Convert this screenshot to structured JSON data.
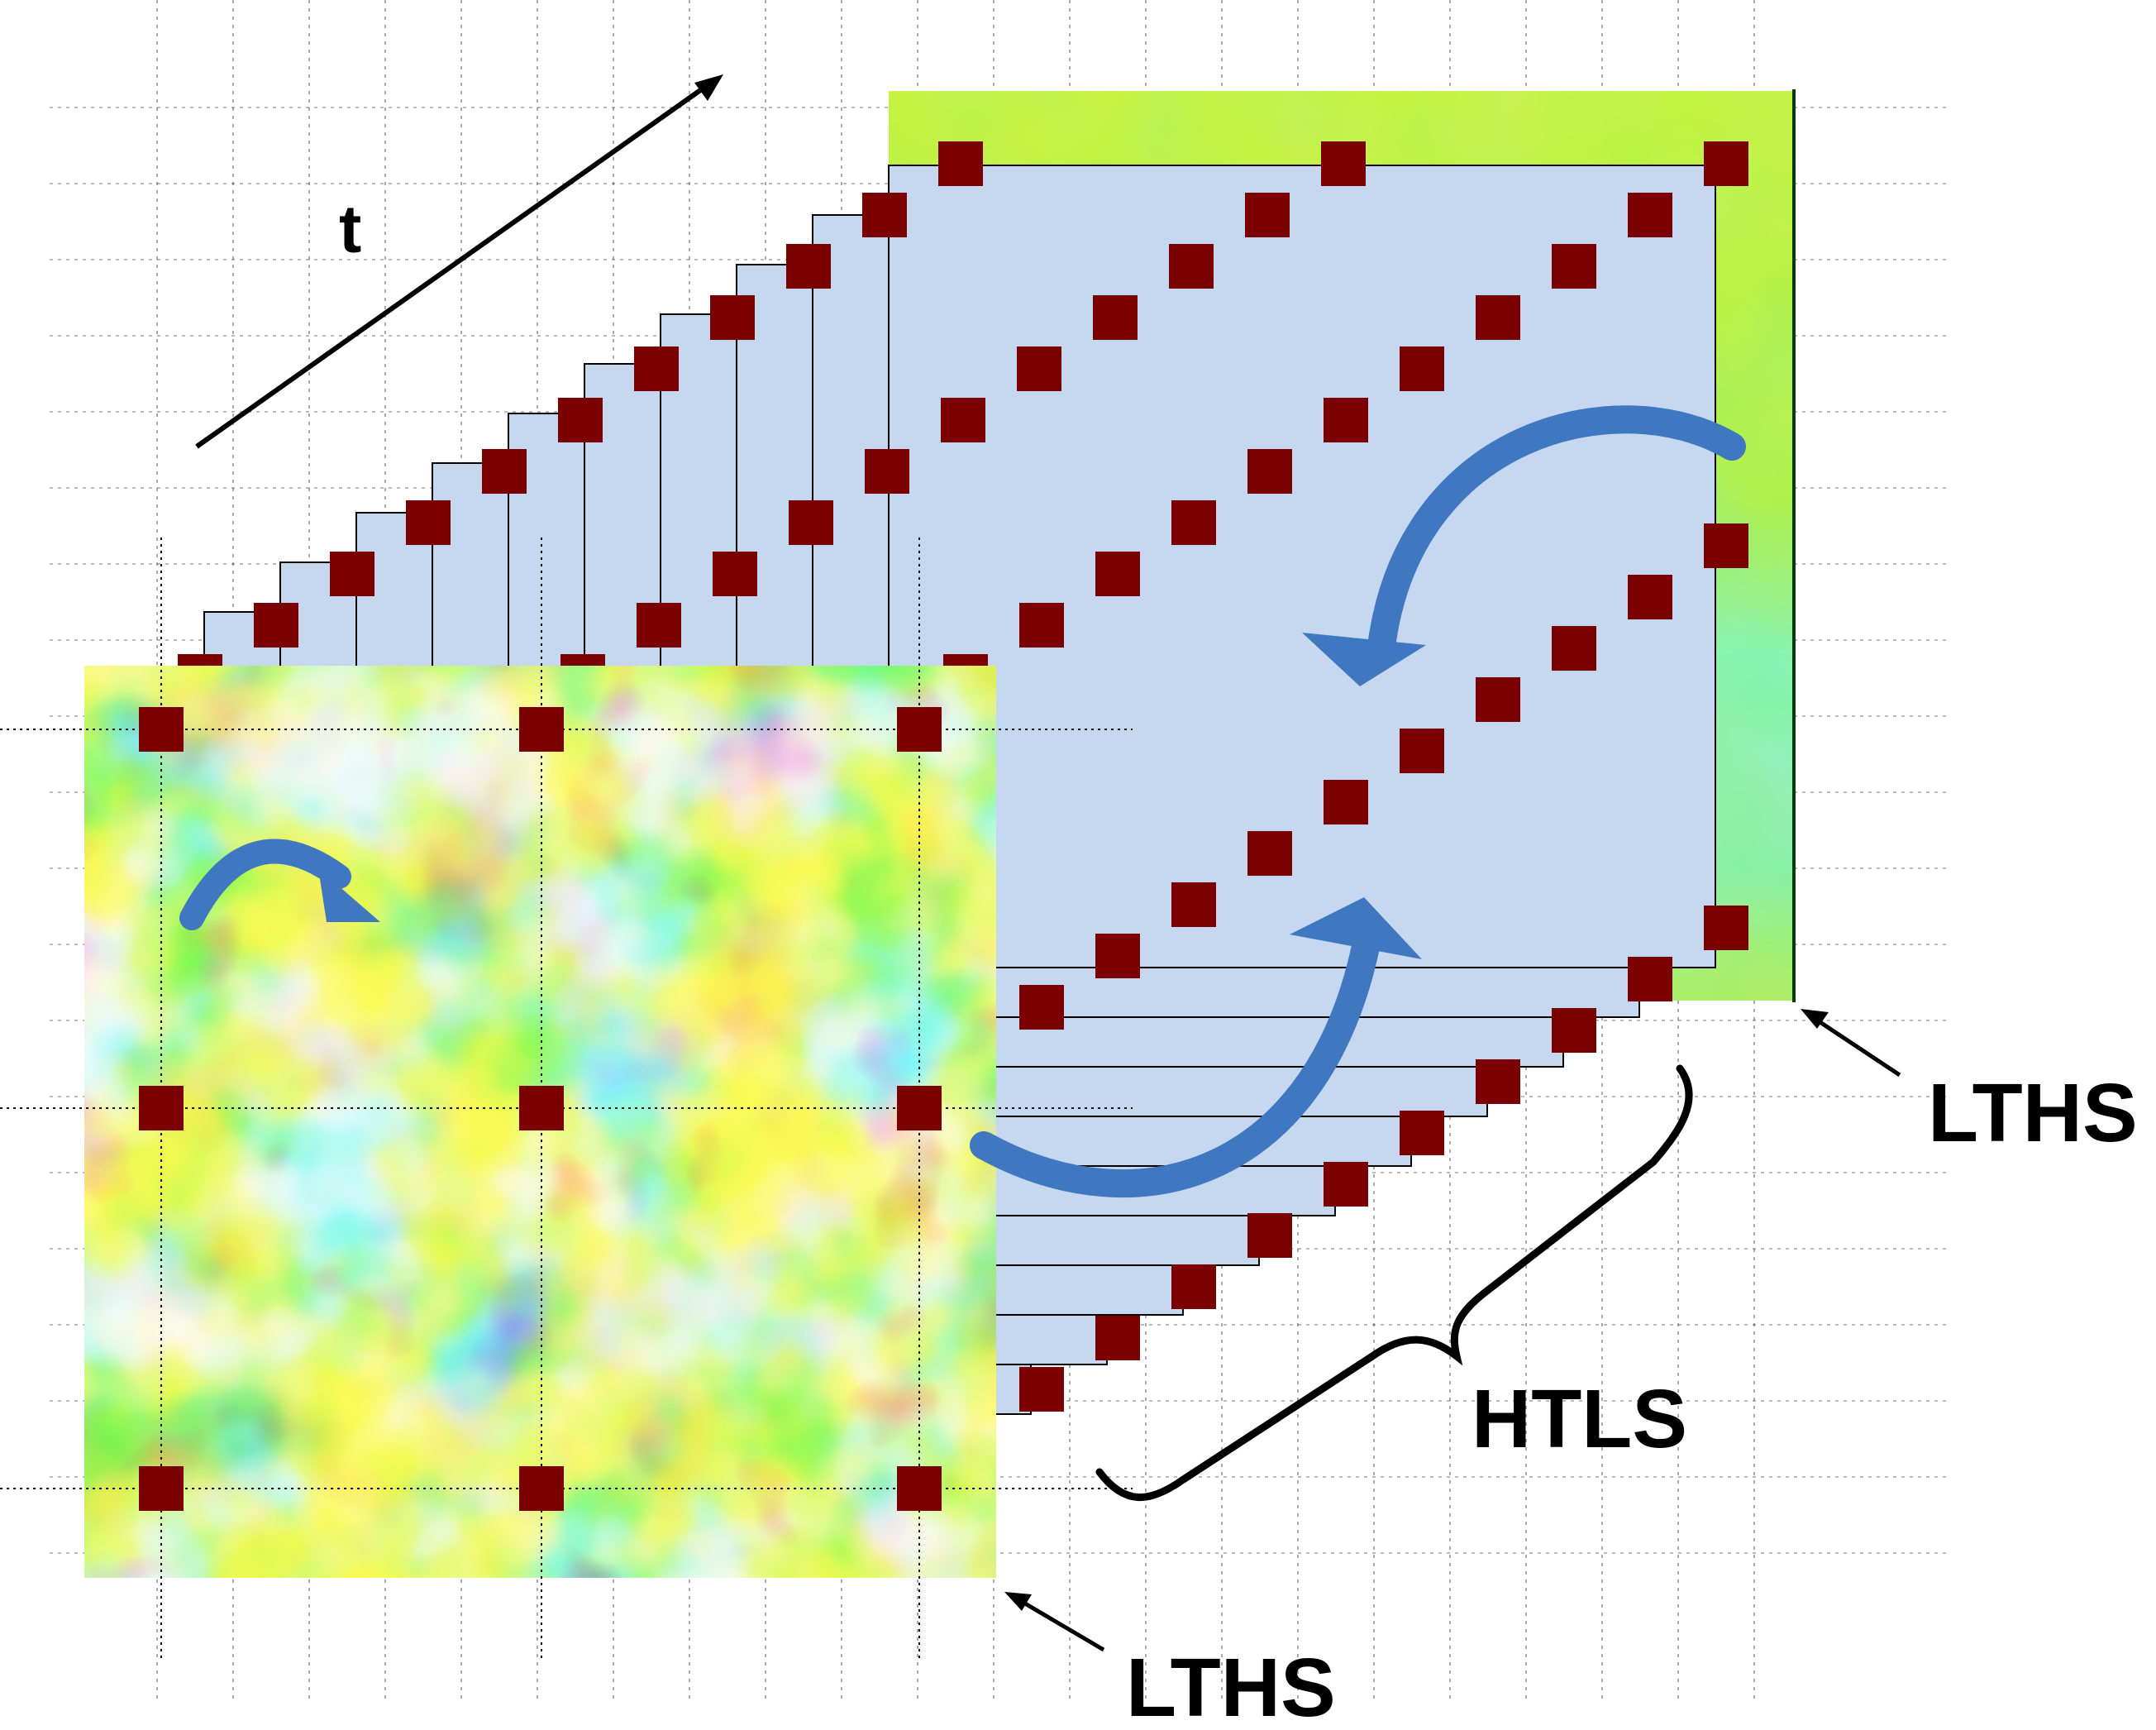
{
  "labels": {
    "time_axis": "t",
    "front_slice": "LTHS",
    "back_slice": "LTHS",
    "middle_slices": "HTLS"
  },
  "colors": {
    "marker": "#7b0000",
    "slice_fill": "#c6d8ef",
    "arrow": "#3f78c0",
    "grid": "#333333",
    "heatmap_low": "#1a2fd6",
    "heatmap_mid": "#b8f02a",
    "heatmap_high": "#e8401a"
  },
  "icons": {
    "circular_arrow": "curved-arrow-icon",
    "marker": "square-marker-icon"
  }
}
